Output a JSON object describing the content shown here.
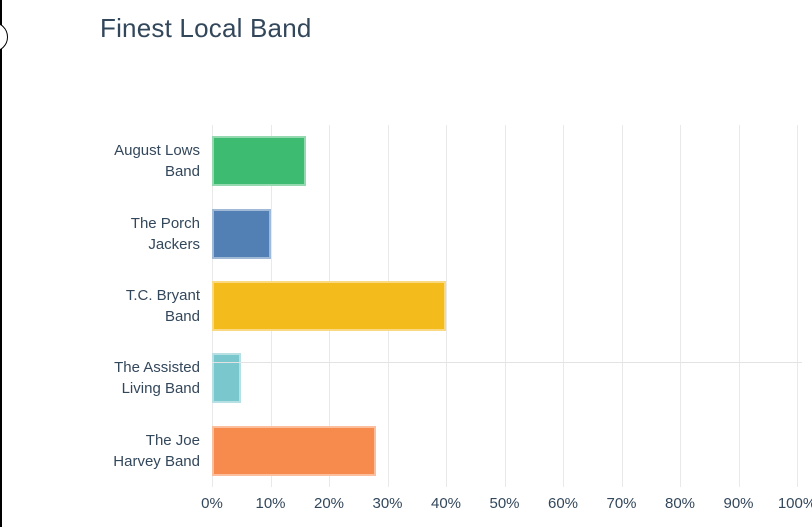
{
  "chart_data": {
    "type": "bar",
    "orientation": "horizontal",
    "title": "Finest Local Band",
    "categories": [
      "August Lows Band",
      "The Porch Jackers",
      "T.C. Bryant Band",
      "The Assisted Living Band",
      "The Joe Harvey Band"
    ],
    "category_label_lines": [
      [
        "August Lows",
        "Band"
      ],
      [
        "The Porch",
        "Jackers"
      ],
      [
        "T.C. Bryant",
        "Band"
      ],
      [
        "The Assisted",
        "Living Band"
      ],
      [
        "The Joe",
        "Harvey Band"
      ]
    ],
    "values": [
      16,
      10,
      40,
      5,
      28
    ],
    "value_unit": "%",
    "bar_colors": [
      "#3dbb70",
      "#5380b4",
      "#f4bb1d",
      "#7ac7cd",
      "#f78b4e"
    ],
    "x_ticks": [
      "0%",
      "10%",
      "20%",
      "30%",
      "40%",
      "50%",
      "60%",
      "70%",
      "80%",
      "90%",
      "100%"
    ],
    "x_tick_values": [
      0,
      10,
      20,
      30,
      40,
      50,
      60,
      70,
      80,
      90,
      100
    ],
    "xlim": [
      0,
      100
    ],
    "xlabel": "",
    "ylabel": "",
    "grid": "vertical",
    "legend": false,
    "colors": {
      "text": "#33475b",
      "gridline": "#e9e9e9",
      "axis_line": "#e3e3e3",
      "background": "#ffffff"
    }
  }
}
